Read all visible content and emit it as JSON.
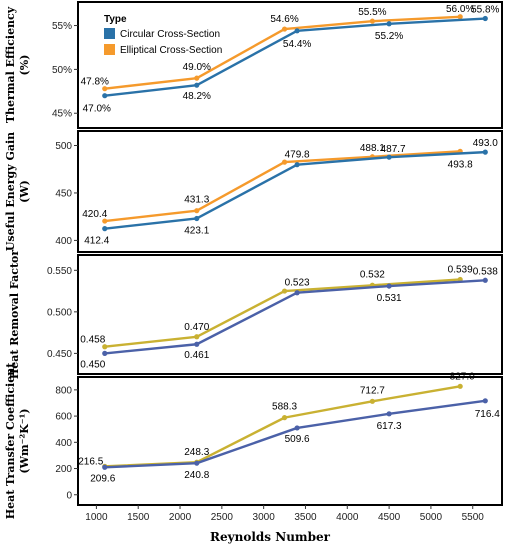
{
  "chart_data": [
    {
      "type": "line",
      "ylabel": "Thermal Efficiency (%)",
      "x": [
        1100,
        2200,
        3400,
        4500,
        5650
      ],
      "ylim": [
        44,
        57
      ],
      "yticks": [
        45,
        50,
        55
      ],
      "ytick_labels": [
        "45%",
        "50%",
        "55%"
      ],
      "legend": {
        "title": "Type",
        "placement": "top-left"
      },
      "series": [
        {
          "name": "Circular Cross-Section",
          "color": "#2a72a8",
          "values": [
            47.0,
            48.2,
            54.4,
            55.2,
            55.8
          ],
          "labels": [
            "47.0%",
            "48.2%",
            "54.4%",
            "55.2%",
            "55.8%"
          ]
        },
        {
          "name": "Elliptical Cross-Section",
          "color": "#f59a2c",
          "x": [
            1100,
            2200,
            3250,
            4300,
            5350
          ],
          "values": [
            47.8,
            49.0,
            54.6,
            55.5,
            56.0
          ],
          "labels": [
            "47.8%",
            "49.0%",
            "54.6%",
            "55.5%",
            "56.0%"
          ]
        }
      ]
    },
    {
      "type": "line",
      "ylabel": "Useful Energy Gain (W)",
      "x": [
        1100,
        2200,
        3400,
        4500,
        5650
      ],
      "ylim": [
        392,
        510
      ],
      "yticks": [
        400,
        450,
        500
      ],
      "ytick_labels": [
        "400",
        "450",
        "500"
      ],
      "series": [
        {
          "color": "#2a72a8",
          "values": [
            412.4,
            423.1,
            479.8,
            487.7,
            493.0
          ],
          "labels": [
            "412.4",
            "423.1",
            "479.8",
            "487.7",
            "493.0"
          ]
        },
        {
          "color": "#f59a2c",
          "x": [
            1100,
            2200,
            3250,
            4300,
            5350
          ],
          "values": [
            420.4,
            431.3,
            482.5,
            488.1,
            493.8
          ],
          "labels": [
            "420.4",
            "431.3",
            "",
            "488.1",
            "493.8"
          ]
        }
      ]
    },
    {
      "type": "line",
      "ylabel": "Heat Removal Factor",
      "x": [
        1100,
        2200,
        3400,
        4500,
        5650
      ],
      "ylim": [
        0.43,
        0.56
      ],
      "yticks": [
        0.45,
        0.5,
        0.55
      ],
      "ytick_labels": [
        "0.450",
        "0.500",
        "0.550"
      ],
      "series": [
        {
          "color": "#4b61a8",
          "values": [
            0.45,
            0.461,
            0.523,
            0.531,
            0.538
          ],
          "labels": [
            "0.450",
            "0.461",
            "0.523",
            "0.531",
            "0.538"
          ]
        },
        {
          "color": "#c9b132",
          "x": [
            1100,
            2200,
            3250,
            4300,
            5350
          ],
          "values": [
            0.458,
            0.47,
            0.525,
            0.532,
            0.539
          ],
          "labels": [
            "0.458",
            "0.470",
            "",
            "0.532",
            "0.539"
          ]
        }
      ]
    },
    {
      "type": "line",
      "ylabel": "Heat Transfer Coefficient (Wm⁻²K⁻¹)",
      "xlabel": "Reynolds Number",
      "x": [
        1100,
        2200,
        3400,
        4500,
        5650
      ],
      "ylim": [
        -40,
        860
      ],
      "yticks": [
        0,
        200,
        400,
        600,
        800
      ],
      "ytick_labels": [
        "0",
        "200",
        "400",
        "600",
        "800"
      ],
      "xticks": [
        1000,
        1500,
        2000,
        2500,
        3000,
        3500,
        4000,
        4500,
        5000,
        5500
      ],
      "xlim": [
        780,
        5850
      ],
      "series": [
        {
          "color": "#4b61a8",
          "values": [
            209.6,
            240.8,
            509.6,
            617.3,
            716.4
          ],
          "labels": [
            "209.6",
            "240.8",
            "509.6",
            "617.3",
            "716.4"
          ]
        },
        {
          "color": "#c9b132",
          "x": [
            1100,
            2200,
            3250,
            4300,
            5350
          ],
          "values": [
            216.5,
            248.3,
            588.3,
            712.7,
            827.0
          ],
          "labels": [
            "216.5",
            "248.3",
            "588.3",
            "712.7",
            "827.0"
          ]
        }
      ]
    }
  ]
}
